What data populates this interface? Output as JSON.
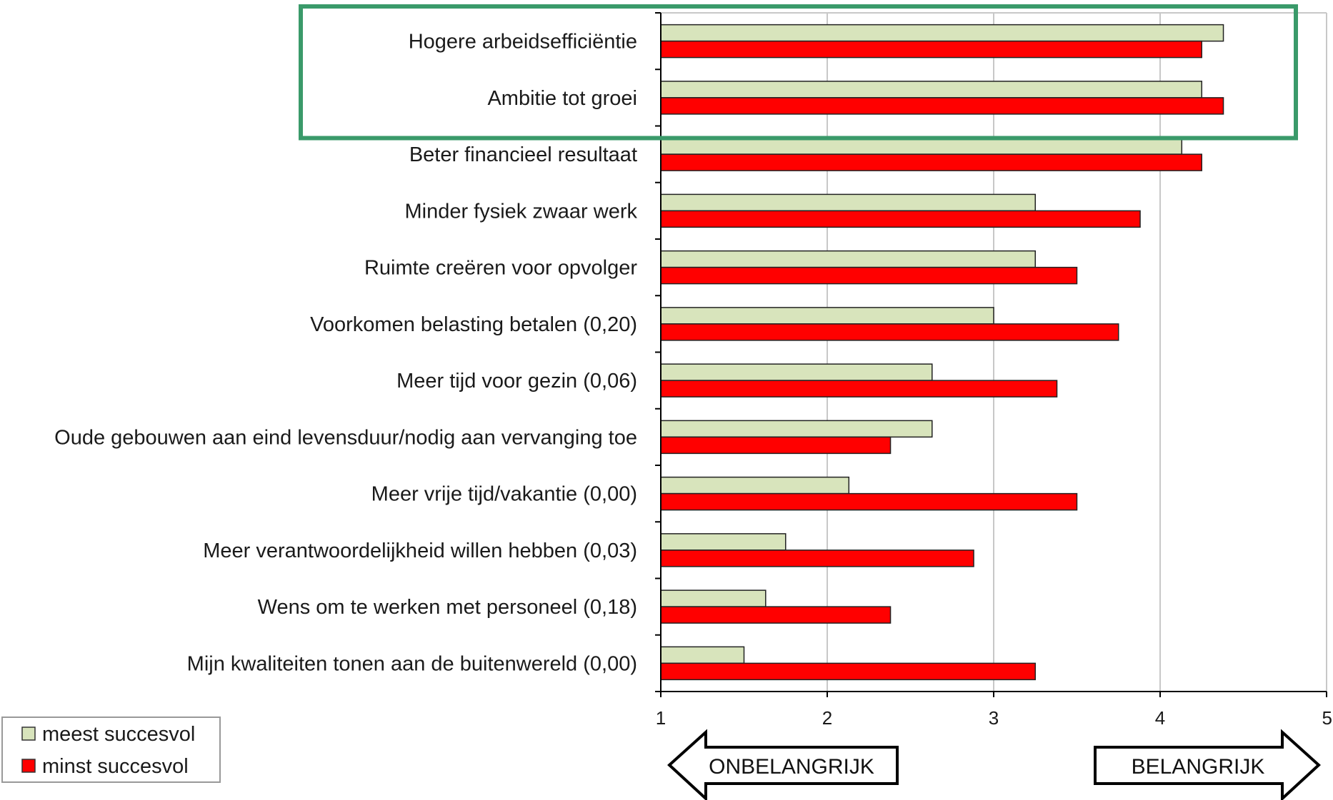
{
  "chart_data": {
    "type": "bar",
    "orientation": "horizontal",
    "categories": [
      "Hogere arbeidsefficiëntie",
      "Ambitie tot groei",
      "Beter financieel resultaat",
      "Minder fysiek zwaar werk",
      "Ruimte creëren voor opvolger",
      "Voorkomen belasting betalen (0,20)",
      "Meer tijd voor gezin (0,06)",
      "Oude gebouwen aan eind levensduur/nodig aan vervanging toe",
      "Meer vrije tijd/vakantie (0,00)",
      "Meer verantwoordelijkheid willen hebben (0,03)",
      "Wens om te werken met personeel (0,18)",
      "Mijn kwaliteiten tonen aan de buitenwereld (0,00)"
    ],
    "series": [
      {
        "name": "meest succesvol",
        "color": "#d8e4bc",
        "values": [
          4.38,
          4.25,
          4.13,
          3.25,
          3.25,
          3.0,
          2.63,
          2.63,
          2.13,
          1.75,
          1.63,
          1.5
        ]
      },
      {
        "name": "minst succesvol",
        "color": "#ff0000",
        "values": [
          4.25,
          4.38,
          4.25,
          3.88,
          3.5,
          3.75,
          3.38,
          2.38,
          3.5,
          2.88,
          2.38,
          3.25
        ]
      }
    ],
    "xlim": [
      1,
      5
    ],
    "xticks": [
      "1",
      "2",
      "3",
      "4",
      "5"
    ],
    "grid": true,
    "legend_position": "bottom-left",
    "highlight": {
      "categories": [
        "Hogere arbeidsefficiëntie",
        "Ambitie tot groei"
      ],
      "color": "#3a9a6a"
    },
    "annotations": {
      "left_arrow": "ONBELANGRIJK",
      "right_arrow": "BELANGRIJK"
    }
  }
}
